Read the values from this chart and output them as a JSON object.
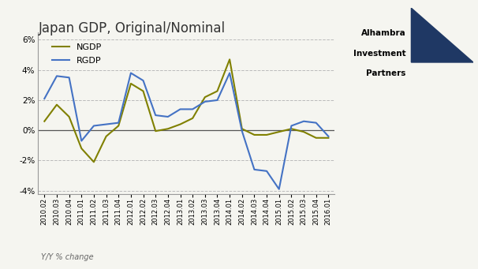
{
  "title": "Japan GDP, Original/Nominal",
  "ylabel_note": "Y/Y % change",
  "ngdp_color": "#808000",
  "rgdp_color": "#4472C4",
  "background_color": "#F5F5F0",
  "plot_bg_color": "#F5F5F0",
  "grid_color": "#BBBBBB",
  "border_color": "#999999",
  "title_color": "#333333",
  "ylim": [
    -4.2,
    6.5
  ],
  "yticks": [
    -4,
    -2,
    0,
    2,
    4,
    6
  ],
  "ytick_labels": [
    "-4%",
    "-2%",
    "0%",
    "2%",
    "4%",
    "6%"
  ],
  "labels": [
    "2010.02",
    "2010.03",
    "2010.04",
    "2011.01",
    "2011.02",
    "2011.03",
    "2011.04",
    "2012.01",
    "2012.02",
    "2012.03",
    "2012.04",
    "2013.01",
    "2013.02",
    "2013.03",
    "2013.04",
    "2014.01",
    "2014.02",
    "2014.03",
    "2014.04",
    "2015.01",
    "2015.02",
    "2015.03",
    "2015.04",
    "2016.01"
  ],
  "ngdp_values": [
    0.6,
    1.7,
    0.9,
    -1.2,
    -2.1,
    -0.4,
    0.3,
    3.1,
    2.6,
    -0.05,
    0.1,
    0.4,
    0.8,
    2.2,
    2.6,
    4.7,
    0.1,
    -0.3,
    -0.3,
    -0.1,
    0.1,
    -0.1,
    -0.5,
    -0.5
  ],
  "rgdp_values": [
    2.1,
    3.6,
    3.5,
    -0.7,
    0.3,
    0.4,
    0.5,
    3.8,
    3.3,
    1.0,
    0.9,
    1.4,
    1.4,
    1.9,
    2.0,
    3.8,
    -0.05,
    -2.6,
    -2.7,
    -3.9,
    0.3,
    0.6,
    0.5,
    -0.4
  ],
  "logo_bg": "#C8D8E8",
  "logo_text": [
    "Alhambra",
    "Investment",
    "Partners"
  ],
  "logo_triangle_color": "#1F3864"
}
